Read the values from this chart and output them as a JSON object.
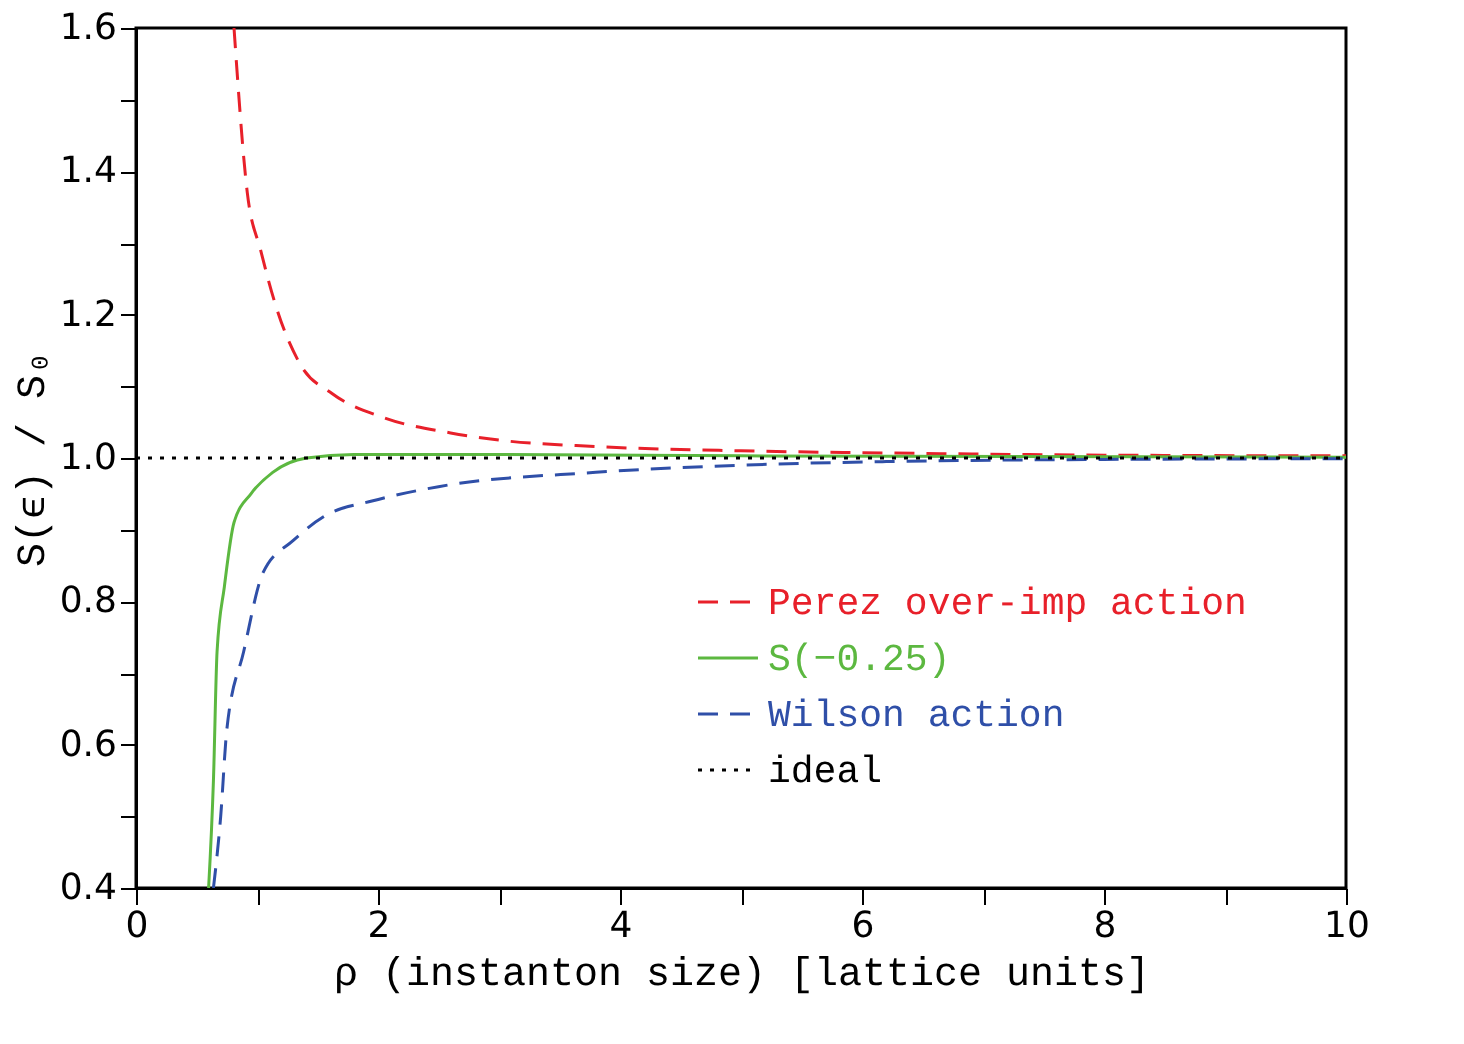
{
  "chart_data": {
    "type": "line",
    "xlabel": "ρ (instanton size) [lattice units]",
    "ylabel": "S(ϵ) / S₀",
    "xlim": [
      0,
      10
    ],
    "ylim": [
      0.4,
      1.6
    ],
    "xticks": [
      0,
      {
        "value": 1,
        "label": null
      },
      2,
      {
        "value": 3,
        "label": null
      },
      4,
      {
        "value": 5,
        "label": null
      },
      6,
      {
        "value": 7,
        "label": null
      },
      8,
      {
        "value": 9,
        "label": null
      },
      10
    ],
    "yticks": [
      0.4,
      {
        "value": 0.5,
        "label": null
      },
      0.6,
      {
        "value": 0.7,
        "label": null
      },
      0.8,
      {
        "value": 0.9,
        "label": null
      },
      {
        "value": 1.0,
        "label": "1.0"
      },
      {
        "value": 1.1,
        "label": null
      },
      1.2,
      {
        "value": 1.3,
        "label": null
      },
      1.4,
      {
        "value": 1.5,
        "label": null
      },
      1.6
    ],
    "grid": false,
    "legend": "bottom right",
    "series": [
      {
        "name": "Perez over-imp action",
        "color": "#e8202a",
        "line_style": "dashed",
        "x": [
          0.81,
          0.92,
          1.03,
          1.16,
          1.36,
          1.62,
          2.07,
          2.6,
          3,
          3.8,
          5,
          6.2,
          8,
          10
        ],
        "values": [
          1.6,
          1.37,
          1.29,
          1.21,
          1.13,
          1.09,
          1.055,
          1.035,
          1.025,
          1.016,
          1.01,
          1.007,
          1.004,
          1.003
        ]
      },
      {
        "name": "S(−0.25)",
        "color": "#5cb840",
        "line_style": "solid",
        "x": [
          0.6,
          0.64,
          0.67,
          0.73,
          0.81,
          0.95,
          1.13,
          1.41,
          1.8,
          3,
          5,
          10
        ],
        "values": [
          0.4,
          0.55,
          0.73,
          0.82,
          0.91,
          0.95,
          0.98,
          1.0,
          1.005,
          1.005,
          1.003,
          1.001
        ]
      },
      {
        "name": "Wilson action",
        "color": "#2f4fa8",
        "line_style": "dashed",
        "x": [
          0.64,
          0.7,
          0.75,
          0.89,
          1.05,
          1.3,
          1.57,
          1.95,
          2.5,
          3.8,
          5,
          6.2,
          8,
          10
        ],
        "values": [
          0.4,
          0.5,
          0.62,
          0.73,
          0.84,
          0.885,
          0.92,
          0.94,
          0.96,
          0.98,
          0.99,
          0.995,
          0.998,
          0.999
        ]
      },
      {
        "name": "ideal",
        "color": "#000000",
        "line_style": "dotted",
        "x": [
          0,
          10
        ],
        "values": [
          1.0,
          1.0
        ]
      }
    ]
  }
}
